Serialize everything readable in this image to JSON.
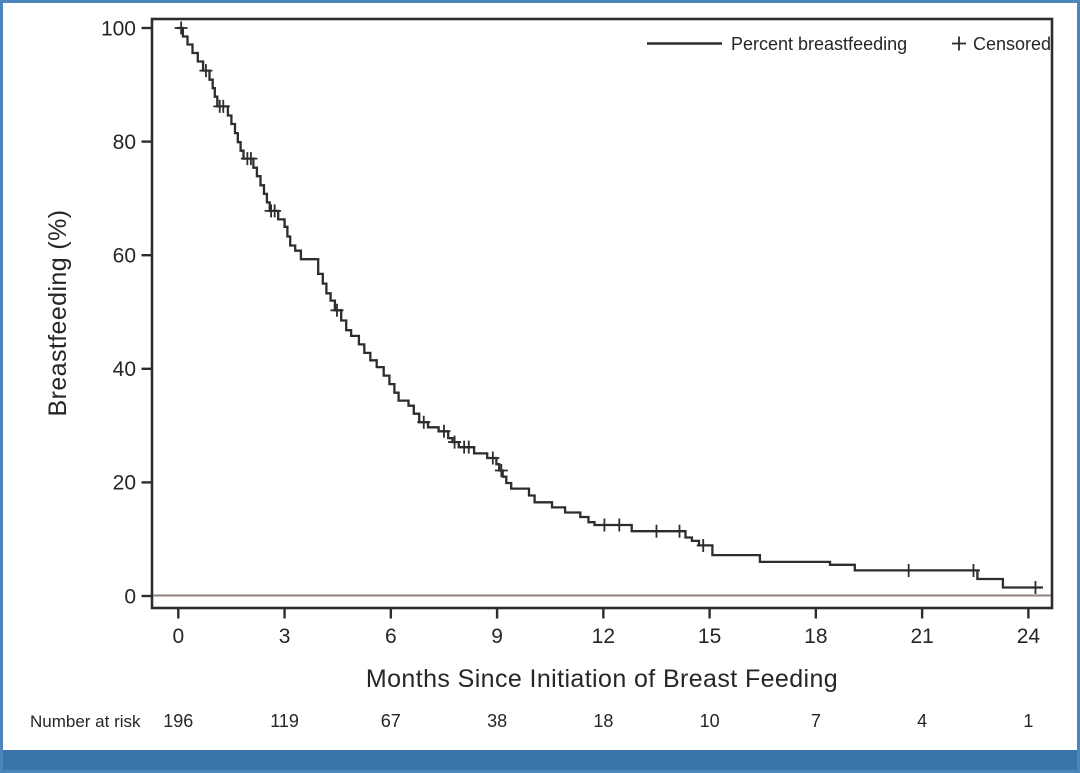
{
  "figure": {
    "frame_color": "#4c86ba",
    "bottom_band_color": "#3a74ab",
    "background": "#ffffff"
  },
  "chart_data": {
    "type": "line",
    "subtype": "kaplan-meier-step-curve",
    "title": "",
    "xlabel": "Months Since Initiation of Breast Feeding",
    "ylabel": "Breastfeeding (%)",
    "xlim": [
      0,
      24
    ],
    "ylim": [
      0,
      100
    ],
    "x_ticks": [
      0,
      3,
      6,
      9,
      12,
      15,
      18,
      21,
      24
    ],
    "y_ticks": [
      0,
      20,
      40,
      60,
      80,
      100
    ],
    "grid": "off",
    "legend_position": "top-right-inside",
    "legend": [
      {
        "label": "Percent breastfeeding",
        "marker": "line"
      },
      {
        "label": "Censored",
        "marker": "plus"
      }
    ],
    "line_color": "#2d2d2d",
    "axis_color": "#2d2d2d",
    "zero_line_color": "#8f827c",
    "series": [
      {
        "name": "Percent breastfeeding",
        "steps": [
          [
            0,
            100
          ],
          [
            0.13,
            98.5
          ],
          [
            0.26,
            97.1
          ],
          [
            0.4,
            95.6
          ],
          [
            0.55,
            94.1
          ],
          [
            0.7,
            92.5
          ],
          [
            0.88,
            90.9
          ],
          [
            0.97,
            89.4
          ],
          [
            1.03,
            87.9
          ],
          [
            1.1,
            86.2
          ],
          [
            1.4,
            84.6
          ],
          [
            1.5,
            83.1
          ],
          [
            1.6,
            81.5
          ],
          [
            1.68,
            79.9
          ],
          [
            1.76,
            78.4
          ],
          [
            1.84,
            77
          ],
          [
            2.12,
            75.4
          ],
          [
            2.22,
            73.9
          ],
          [
            2.32,
            72.3
          ],
          [
            2.42,
            70.8
          ],
          [
            2.5,
            69.3
          ],
          [
            2.58,
            67.8
          ],
          [
            2.82,
            66.3
          ],
          [
            3,
            65
          ],
          [
            3.08,
            63.3
          ],
          [
            3.16,
            61.7
          ],
          [
            3.3,
            60.8
          ],
          [
            3.46,
            59.3
          ],
          [
            3.95,
            56.7
          ],
          [
            4.08,
            55
          ],
          [
            4.18,
            53.3
          ],
          [
            4.3,
            52
          ],
          [
            4.42,
            50.3
          ],
          [
            4.6,
            48.5
          ],
          [
            4.74,
            46.8
          ],
          [
            4.88,
            45.8
          ],
          [
            5.1,
            44.3
          ],
          [
            5.25,
            42.8
          ],
          [
            5.42,
            41.5
          ],
          [
            5.6,
            40.3
          ],
          [
            5.8,
            38.8
          ],
          [
            5.96,
            37.3
          ],
          [
            6.1,
            35.8
          ],
          [
            6.22,
            34.4
          ],
          [
            6.5,
            33.5
          ],
          [
            6.65,
            32.1
          ],
          [
            6.8,
            30.6
          ],
          [
            7.05,
            29.7
          ],
          [
            7.35,
            29
          ],
          [
            7.62,
            27.8
          ],
          [
            7.74,
            27.1
          ],
          [
            7.92,
            26.2
          ],
          [
            8.35,
            25.1
          ],
          [
            8.72,
            24.3
          ],
          [
            8.98,
            23.2
          ],
          [
            9.06,
            22.1
          ],
          [
            9.16,
            21
          ],
          [
            9.26,
            19.9
          ],
          [
            9.4,
            18.9
          ],
          [
            9.9,
            17.7
          ],
          [
            10.06,
            16.5
          ],
          [
            10.55,
            15.6
          ],
          [
            10.92,
            14.7
          ],
          [
            11.35,
            13.9
          ],
          [
            11.58,
            13
          ],
          [
            11.75,
            12.5
          ],
          [
            12.8,
            11.4
          ],
          [
            14.32,
            10.3
          ],
          [
            14.5,
            9.7
          ],
          [
            14.7,
            8.9
          ],
          [
            15.08,
            7.2
          ],
          [
            16.42,
            6
          ],
          [
            18.4,
            5.5
          ],
          [
            19.1,
            4.5
          ],
          [
            22.56,
            3
          ],
          [
            23.28,
            1.5
          ]
        ],
        "end_month": 24.38
      }
    ],
    "censored_points": [
      [
        0.08,
        100
      ],
      [
        0.78,
        92.5
      ],
      [
        1.17,
        86.2
      ],
      [
        1.27,
        86.2
      ],
      [
        1.95,
        77
      ],
      [
        2.05,
        77
      ],
      [
        2.62,
        67.8
      ],
      [
        2.72,
        67.8
      ],
      [
        4.48,
        50.3
      ],
      [
        6.93,
        30.6
      ],
      [
        7.5,
        29
      ],
      [
        7.8,
        27.1
      ],
      [
        8.07,
        26.2
      ],
      [
        8.2,
        26.2
      ],
      [
        8.88,
        24.3
      ],
      [
        9.12,
        22.1
      ],
      [
        12.03,
        12.5
      ],
      [
        12.45,
        12.5
      ],
      [
        13.5,
        11.4
      ],
      [
        14.15,
        11.4
      ],
      [
        14.82,
        8.9
      ],
      [
        20.62,
        4.5
      ],
      [
        22.45,
        4.5
      ],
      [
        24.2,
        1.5
      ]
    ],
    "reference_line_y": 0,
    "number_at_risk": {
      "label": "Number at risk",
      "months": [
        0,
        3,
        6,
        9,
        12,
        15,
        18,
        21,
        24
      ],
      "values": [
        196,
        119,
        67,
        38,
        18,
        10,
        7,
        4,
        1
      ]
    }
  }
}
